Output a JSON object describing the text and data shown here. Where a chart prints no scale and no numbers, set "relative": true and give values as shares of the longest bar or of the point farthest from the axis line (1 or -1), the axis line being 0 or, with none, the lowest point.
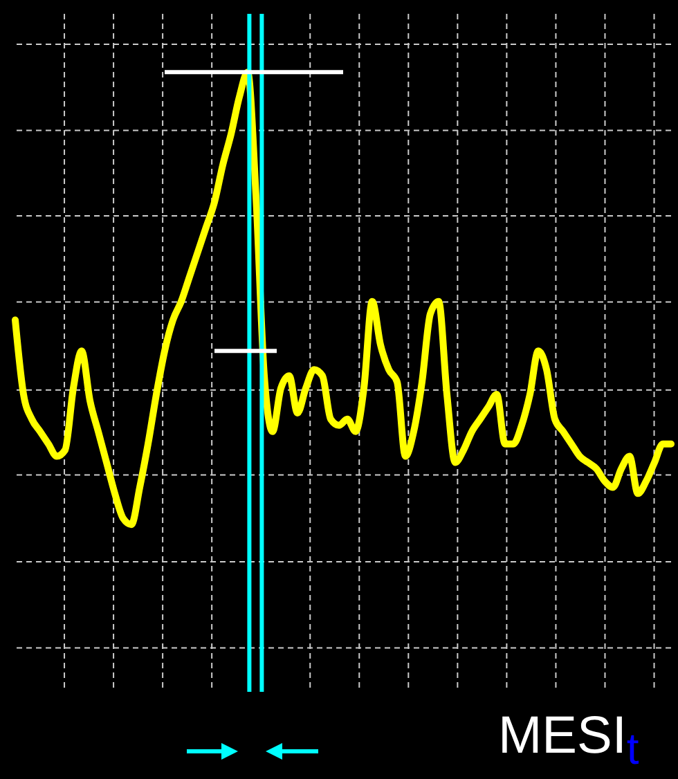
{
  "chart_data": {
    "type": "line",
    "relative": true,
    "grid": true,
    "marker": "none",
    "line_style": "solid",
    "categories": [
      null,
      null,
      null,
      null,
      null,
      null,
      null,
      null,
      null,
      null,
      null,
      null,
      null,
      null,
      null,
      null,
      null,
      null,
      null,
      null,
      null,
      null,
      null,
      null,
      null,
      null,
      null,
      null,
      null,
      null,
      null,
      null,
      null,
      null,
      null,
      null,
      null,
      null,
      null,
      null,
      null,
      null,
      null,
      null,
      null,
      null,
      null,
      null,
      null,
      null,
      null,
      null,
      null,
      null,
      null,
      null,
      null,
      null,
      null,
      null,
      null,
      null,
      null,
      null,
      null,
      null,
      null,
      null,
      null,
      null,
      null,
      null,
      null,
      null,
      null,
      null,
      null,
      null,
      null,
      null
    ],
    "series": [
      {
        "color": "#ffff00",
        "values": [
          0.6,
          0.48,
          0.44,
          0.42,
          0.4,
          0.38,
          0.39,
          0.49,
          0.55,
          0.47,
          0.42,
          0.37,
          0.32,
          0.28,
          0.27,
          0.33,
          0.4,
          0.48,
          0.55,
          0.6,
          0.63,
          0.67,
          0.71,
          0.75,
          0.79,
          0.85,
          0.9,
          0.96,
          1,
          0.8,
          0.51,
          0.42,
          0.49,
          0.51,
          0.45,
          0.49,
          0.52,
          0.51,
          0.44,
          0.43,
          0.44,
          0.42,
          0.49,
          0.63,
          0.56,
          0.52,
          0.5,
          0.38,
          0.42,
          0.5,
          0.61,
          0.63,
          0.48,
          0.37,
          0.39,
          0.42,
          0.44,
          0.46,
          0.48,
          0.4,
          0.4,
          0.43,
          0.48,
          0.55,
          0.52,
          0.44,
          0.42,
          0.4,
          0.38,
          0.37,
          0.36,
          0.34,
          0.33,
          0.36,
          0.38,
          0.32,
          0.34,
          0.37,
          0.4,
          0.4
        ]
      }
    ],
    "ref_lines": [
      {
        "axis": "y",
        "value": 1,
        "color": "#ffffff"
      },
      {
        "axis": "y",
        "value": 0.55,
        "color": "#ffffff"
      }
    ],
    "annotations": [
      "MESI$_{t}$"
    ]
  }
}
